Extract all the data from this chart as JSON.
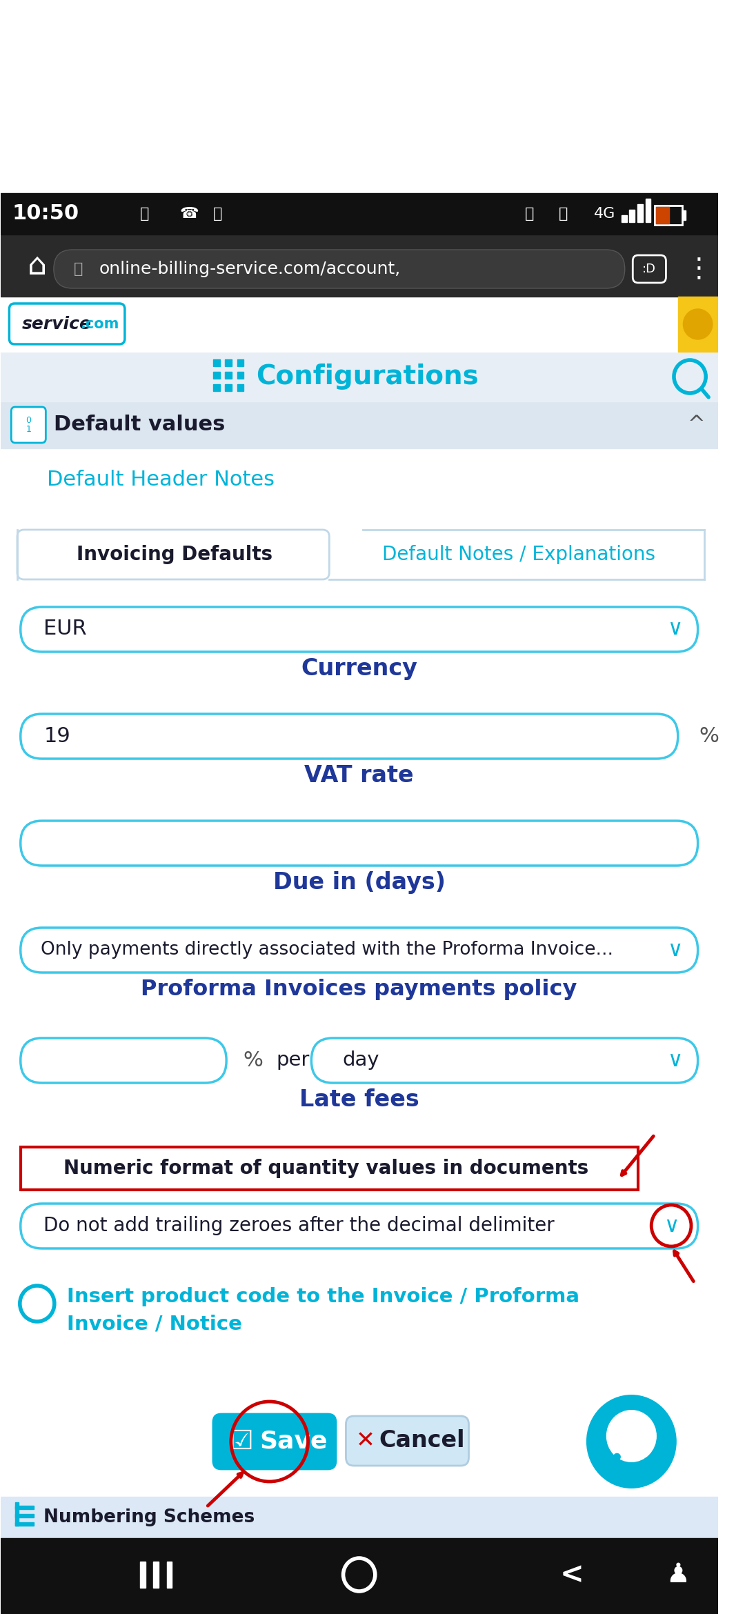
{
  "bg_color": "#ffffff",
  "statusbar_bg": "#1a1a1a",
  "time": "10:50",
  "url": "online-billing-service.com/account,",
  "nav_bg": "#2d2d2d",
  "header_bg": "#e8eef5",
  "header_title": "Configurations",
  "header_title_color": "#00b4d8",
  "section_bg": "#dce6f0",
  "section_title": "Default values",
  "section_title_color": "#1a1a2e",
  "tab1": "Invoicing Defaults",
  "tab2": "Default Notes / Explanations",
  "tab2_color": "#00b4d8",
  "label_color": "#1e3799",
  "currency_label": "Currency",
  "currency_value": "EUR",
  "vat_label": "VAT rate",
  "vat_value": "19",
  "due_label": "Due in (days)",
  "proforma_label": "Proforma Invoices payments policy",
  "proforma_value": "Only payments directly associated with the Proforma Invoice...",
  "late_label": "Late fees",
  "numeric_label": "Numeric format of quantity values in documents",
  "numeric_value": "Do not add trailing zeroes after the decimal delimiter",
  "product_line1": "Insert product code to the Invoice / Proforma",
  "product_line2": "Invoice / Notice",
  "save_btn": "Save",
  "cancel_btn": "Cancel",
  "numbering_label": "Numbering Schemes",
  "default_header_notes": "Default Header Notes",
  "default_header_color": "#00b4d8",
  "red_color": "#cc0000",
  "cyan_color": "#00b4d8",
  "dark_text": "#1a1a2e",
  "input_border": "#3dc8e8",
  "light_gray": "#e8eef5"
}
